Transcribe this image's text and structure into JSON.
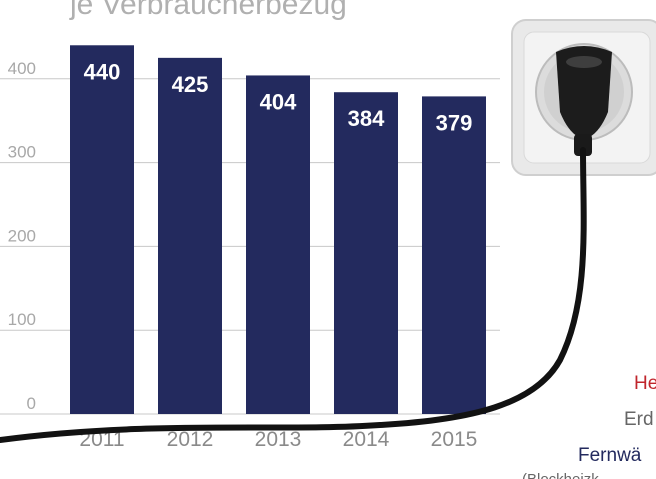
{
  "title": "je Verbraucherbezug",
  "side_labels": {
    "line1": "He",
    "line2": "Erd",
    "line3": "Fernwä",
    "line4": "(Blockheizk"
  },
  "colors": {
    "bar": "#232a5e",
    "grid": "#c8c8c8",
    "accent_red": "#c0252c",
    "navy_text": "#232a5e",
    "gray_text": "#666666"
  },
  "illustration": {
    "name": "power-plug-in-wall-socket",
    "icon": "plug-socket-icon"
  },
  "chart_data": {
    "type": "bar",
    "categories": [
      "2011",
      "2012",
      "2013",
      "2014",
      "2015"
    ],
    "values": [
      440,
      425,
      404,
      384,
      379
    ],
    "data_labels": [
      "440",
      "425",
      "404",
      "384",
      "379"
    ],
    "yticks": [
      "0",
      "100",
      "200",
      "300",
      "400"
    ],
    "ylim": [
      0,
      480
    ],
    "grid": true,
    "xlabel": "",
    "ylabel": ""
  }
}
